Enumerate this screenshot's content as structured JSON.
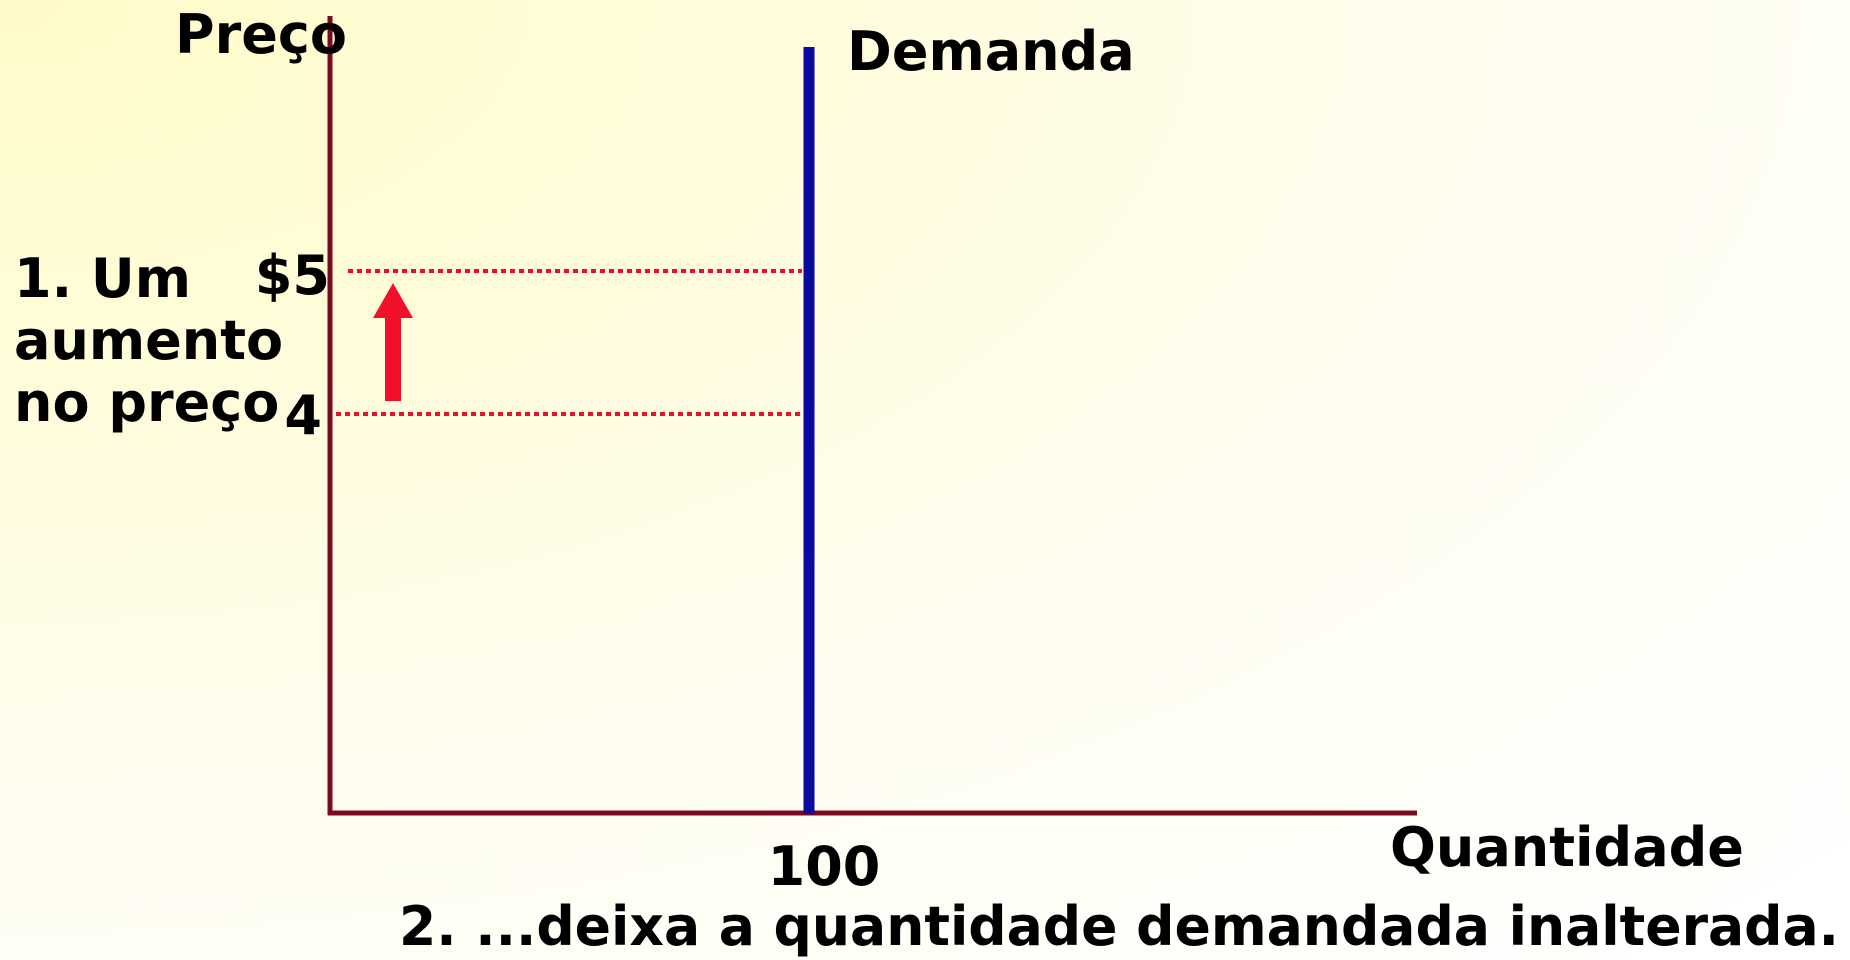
{
  "y_axis_label": "Preço",
  "x_axis_label": "Quantidade",
  "curve_label": "Demanda",
  "price_labels": [
    "$5",
    "4"
  ],
  "quantity_label": "100",
  "annotation_lines": [
    "1. Um",
    "aumento",
    "no preço"
  ],
  "caption": "2. ...deixa a quantidade demandada inalterada."
}
